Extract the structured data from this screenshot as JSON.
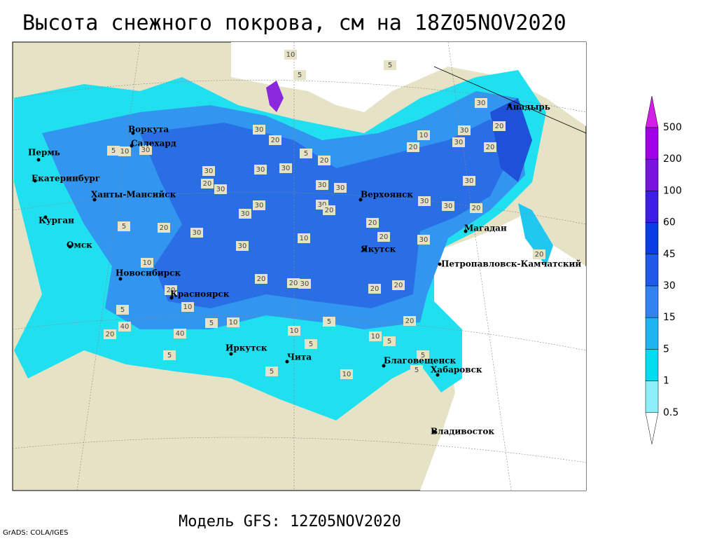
{
  "title": "Высота снежного покрова, см на 18Z05NOV2020",
  "footer": "Модель GFS: 12Z05NOV2020",
  "credit": "GrADS: COLA/IGES",
  "cities": [
    "Воркута",
    "Салехард",
    "Пермь",
    "Екатеринбург",
    "Ханты-Мансийск",
    "Курган",
    "Омск",
    "Новосибирск",
    "Красноярск",
    "Иркутск",
    "Чита",
    "Благовещенск",
    "Хабаровск",
    "Владивосток",
    "Петропавловск-Камчатский",
    "Магадан",
    "Якутск",
    "Верхоянск",
    "Анадырь"
  ],
  "contour_labels": [
    10,
    5,
    5,
    30,
    30,
    20,
    30,
    20,
    10,
    20,
    30,
    20,
    5,
    20,
    10,
    30,
    5,
    30,
    30,
    30,
    20,
    30,
    30,
    30,
    30,
    30,
    30,
    20,
    30,
    30,
    20,
    30,
    20,
    30,
    20,
    5,
    10,
    20,
    30,
    30,
    10,
    20,
    20,
    20,
    20,
    30,
    20,
    20,
    10,
    5,
    5,
    10,
    10,
    5,
    10,
    5,
    20,
    5,
    5,
    10,
    5,
    5,
    20,
    40,
    40,
    5
  ],
  "legend": {
    "levels": [
      500,
      200,
      100,
      60,
      45,
      30,
      15,
      5,
      1,
      0.5
    ],
    "colors": [
      "#d21ee6",
      "#a000e6",
      "#7814dc",
      "#3c1ee6",
      "#0a3ce6",
      "#1e5ae6",
      "#3282f0",
      "#1eb4f0",
      "#00dcf0",
      "#8ceef8",
      "#ffffff"
    ]
  }
}
